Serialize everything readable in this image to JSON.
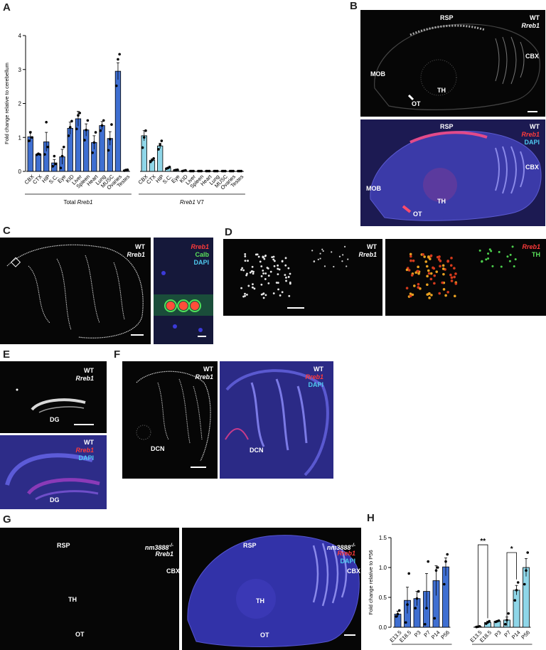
{
  "panel_labels": {
    "A": "A",
    "B": "B",
    "C": "C",
    "D": "D",
    "E": "E",
    "F": "F",
    "G": "G",
    "H": "H"
  },
  "panelB": {
    "top": {
      "wt": "WT",
      "gene": "Rreb1",
      "rsp": "RSP",
      "cbx": "CBX",
      "mob": "MOB",
      "th": "TH",
      "ot": "OT"
    },
    "bottom": {
      "wt": "WT",
      "gene": "Rreb1",
      "dapi": "DAPI",
      "rsp": "RSP",
      "cbx": "CBX",
      "mob": "MOB",
      "th": "TH",
      "ot": "OT"
    }
  },
  "panelC": {
    "left": {
      "wt": "WT",
      "gene": "Rreb1"
    },
    "right": {
      "gene": "Rreb1",
      "calb": "Calb",
      "dapi": "DAPI"
    }
  },
  "panelD": {
    "left": {
      "wt": "WT",
      "gene": "Rreb1"
    },
    "right": {
      "gene": "Rreb1",
      "th": "TH"
    }
  },
  "panelE": {
    "top": {
      "wt": "WT",
      "gene": "Rreb1",
      "dg": "DG"
    },
    "bottom": {
      "wt": "WT",
      "gene": "Rreb1",
      "dapi": "DAPI",
      "dg": "DG"
    }
  },
  "panelF": {
    "left": {
      "wt": "WT",
      "gene": "Rreb1",
      "dcn": "DCN"
    },
    "right": {
      "wt": "WT",
      "gene": "Rreb1",
      "dapi": "DAPI",
      "dcn": "DCN"
    }
  },
  "panelG": {
    "left": {
      "genotype": "nm3888",
      "sup": "-/-",
      "gene": "Rreb1",
      "rsp": "RSP",
      "cbx": "CBX",
      "th": "TH",
      "ot": "OT"
    },
    "right": {
      "genotype": "nm3888",
      "sup": "-/-",
      "gene": "Rreb1",
      "dapi": "DAPI",
      "rsp": "RSP",
      "cbx": "CBX",
      "th": "TH",
      "ot": "OT"
    }
  },
  "chart_data": [
    {
      "type": "bar",
      "ylabel": "Fold change relative to cerebellum",
      "ylim": [
        0,
        4
      ],
      "yticks": [
        0,
        1,
        2,
        3,
        4
      ],
      "groups": [
        {
          "name": "Total Rreb1",
          "color": "#3f6fd1",
          "categories": [
            "CBX",
            "CTX",
            "HIP",
            "S.C.",
            "Eye",
            "KID",
            "Liver",
            "Spleen",
            "Heart",
            "Lung",
            "MUSC",
            "Ovaries",
            "Testes"
          ],
          "values": [
            1.02,
            0.5,
            0.87,
            0.25,
            0.43,
            1.27,
            1.55,
            1.22,
            0.85,
            1.35,
            0.97,
            2.95,
            0.04
          ],
          "errors": [
            0.15,
            0.02,
            0.28,
            0.1,
            0.22,
            0.18,
            0.22,
            0.18,
            0.2,
            0.12,
            0.2,
            0.25,
            0.02
          ],
          "points": [
            [
              0.9,
              1.15,
              1.0
            ],
            [
              0.49,
              0.52,
              0.5
            ],
            [
              0.5,
              1.45,
              0.72
            ],
            [
              0.15,
              0.45,
              0.22
            ],
            [
              0.1,
              0.45,
              0.72
            ],
            [
              1.05,
              1.3,
              1.48
            ],
            [
              1.25,
              1.65,
              1.72
            ],
            [
              0.92,
              1.22,
              1.5
            ],
            [
              0.55,
              0.85,
              1.15
            ],
            [
              1.2,
              1.35,
              1.5
            ],
            [
              0.62,
              0.95,
              1.38
            ],
            [
              2.52,
              3.3,
              3.45
            ],
            [
              0.02,
              0.04,
              0.05
            ]
          ]
        },
        {
          "name": "Rreb1 V7",
          "color": "#8fd6e8",
          "categories": [
            "CBX",
            "CTX",
            "HIP",
            "S.C.",
            "Eye",
            "KID",
            "Liver",
            "Spleen",
            "Heart",
            "Lung",
            "MUSC",
            "Ovaries",
            "Testes"
          ],
          "values": [
            1.05,
            0.33,
            0.75,
            0.1,
            0.04,
            0.02,
            0.01,
            0.01,
            0.01,
            0.01,
            0.01,
            0.01,
            0.01
          ],
          "errors": [
            0.15,
            0.04,
            0.08,
            0.02,
            0.01,
            0.01,
            0,
            0,
            0,
            0,
            0,
            0,
            0
          ],
          "points": [
            [
              0.7,
              1.0,
              1.2
            ],
            [
              0.28,
              0.33,
              0.38
            ],
            [
              0.65,
              0.78,
              0.9
            ],
            [
              0.08,
              0.1,
              0.13
            ],
            [
              0.03,
              0.04,
              0.05
            ],
            [
              0.01,
              0.02,
              0.03
            ],
            [
              0.01,
              0.01,
              0.01
            ],
            [
              0.01,
              0.01,
              0.01
            ],
            [
              0.01,
              0.01,
              0.01
            ],
            [
              0.01,
              0.01,
              0.01
            ],
            [
              0.01,
              0.01,
              0.01
            ],
            [
              0.01,
              0.01,
              0.01
            ],
            [
              0.01,
              0.01,
              0.01
            ]
          ]
        }
      ],
      "group_labels": [
        "Total Rreb1",
        "Rreb1 V7"
      ]
    },
    {
      "type": "bar",
      "ylabel": "Fold change relative to P56",
      "ylim": [
        0,
        1.5
      ],
      "yticks": [
        0.0,
        0.5,
        1.0,
        1.5
      ],
      "groups": [
        {
          "name": "Total Rreb1",
          "color": "#3f6fd1",
          "categories": [
            "E13.5",
            "E18.5",
            "P3",
            "P7",
            "P14",
            "P56"
          ],
          "values": [
            0.22,
            0.45,
            0.48,
            0.6,
            0.78,
            1.01
          ],
          "errors": [
            0.05,
            0.22,
            0.12,
            0.3,
            0.25,
            0.15
          ],
          "points": [
            [
              0.18,
              0.22,
              0.28
            ],
            [
              0.08,
              0.38,
              0.9
            ],
            [
              0.32,
              0.48,
              0.6
            ],
            [
              0.05,
              0.32,
              1.1
            ],
            [
              0.15,
              0.95,
              1.0
            ],
            [
              0.72,
              1.1,
              1.22
            ]
          ]
        },
        {
          "name": "Rreb1 V7",
          "color": "#8fd6e8",
          "categories": [
            "E13.5",
            "E18.5",
            "P3",
            "P7",
            "P14",
            "P56"
          ],
          "values": [
            0.01,
            0.08,
            0.1,
            0.12,
            0.62,
            1.0
          ],
          "errors": [
            0.005,
            0.02,
            0.01,
            0.05,
            0.08,
            0.15
          ],
          "points": [
            [
              0.005,
              0.01,
              0.015
            ],
            [
              0.06,
              0.08,
              0.1
            ],
            [
              0.09,
              0.1,
              0.11
            ],
            [
              0.05,
              0.12,
              0.23
            ],
            [
              0.45,
              0.62,
              0.75
            ],
            [
              0.72,
              0.95,
              1.25
            ]
          ]
        }
      ],
      "group_labels": [
        "Total Rreb1",
        "Rreb1 V7"
      ],
      "annotations": [
        {
          "label": "**",
          "from": "E13.5",
          "to": "E18.5",
          "group": "Rreb1 V7"
        },
        {
          "label": "*",
          "from": "P7",
          "to": "P14",
          "group": "Rreb1 V7"
        }
      ]
    }
  ]
}
